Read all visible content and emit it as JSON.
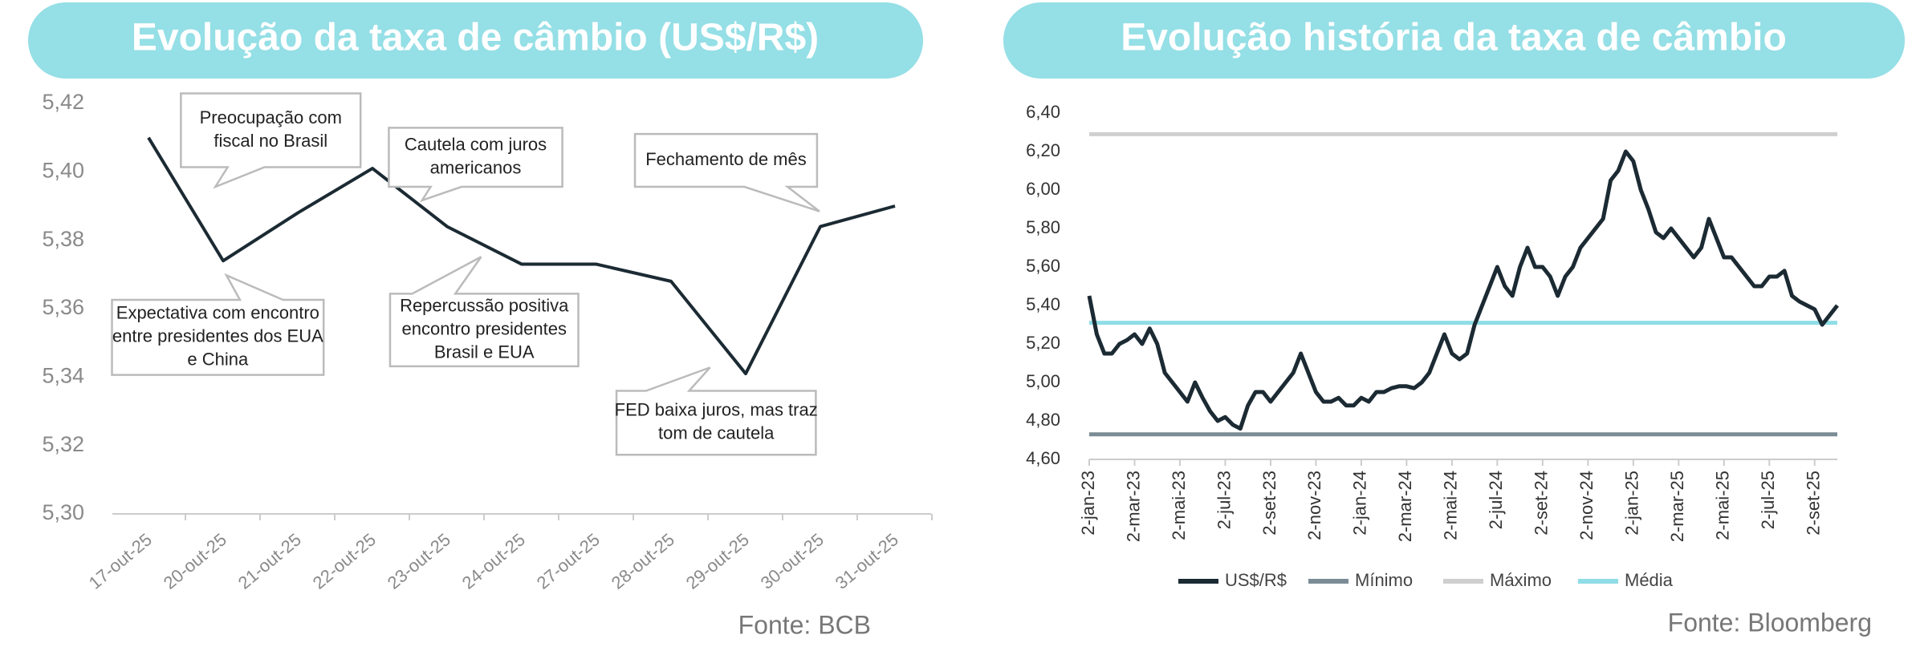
{
  "chart_data": [
    {
      "type": "line",
      "title": "Evolução da taxa de câmbio (US$/R$)",
      "categories": [
        "17-out-25",
        "20-out-25",
        "21-out-25",
        "22-out-25",
        "23-out-25",
        "24-out-25",
        "27-out-25",
        "28-out-25",
        "29-out-25",
        "30-out-25",
        "31-out-25"
      ],
      "values": [
        5.41,
        5.374,
        5.388,
        5.401,
        5.384,
        5.373,
        5.373,
        5.368,
        5.341,
        5.384,
        5.39
      ],
      "color": "#1b2a33",
      "ylim": [
        5.3,
        5.42
      ],
      "yticks": [
        {
          "value": 5.3,
          "label": "5,30"
        },
        {
          "value": 5.32,
          "label": "5,32"
        },
        {
          "value": 5.34,
          "label": "5,34"
        },
        {
          "value": 5.36,
          "label": "5,36"
        },
        {
          "value": 5.38,
          "label": "5,38"
        },
        {
          "value": 5.4,
          "label": "5,40"
        },
        {
          "value": 5.42,
          "label": "5,42"
        }
      ],
      "annotations": [
        {
          "lines": [
            "Preocupação com",
            "fiscal no Brasil"
          ]
        },
        {
          "lines": [
            "Cautela com juros",
            "americanos"
          ]
        },
        {
          "lines": [
            "Fechamento de mês"
          ]
        },
        {
          "lines": [
            "Expectativa com encontro",
            "entre presidentes dos EUA",
            "e China"
          ]
        },
        {
          "lines": [
            "Repercussão positiva",
            "encontro presidentes",
            "Brasil e EUA"
          ]
        },
        {
          "lines": [
            "FED baixa juros, mas traz",
            "tom de cautela"
          ]
        }
      ],
      "source": "Fonte: BCB"
    },
    {
      "type": "line",
      "title": "Evolução história da taxa de câmbio",
      "x": [
        "2-jan-23",
        null,
        null,
        null,
        null,
        null,
        "2-mar-23",
        null,
        null,
        null,
        null,
        null,
        "2-mai-23",
        null,
        null,
        null,
        null,
        null,
        "2-jul-23",
        null,
        null,
        null,
        null,
        null,
        "2-set-23",
        null,
        null,
        null,
        null,
        null,
        "2-nov-23",
        null,
        null,
        null,
        null,
        null,
        "2-jan-24",
        null,
        null,
        null,
        null,
        null,
        "2-mar-24",
        null,
        null,
        null,
        null,
        null,
        "2-mai-24",
        null,
        null,
        null,
        null,
        null,
        "2-jul-24",
        null,
        null,
        null,
        null,
        null,
        "2-set-24",
        null,
        null,
        null,
        null,
        null,
        "2-nov-24",
        null,
        null,
        null,
        null,
        null,
        "2-jan-25",
        null,
        null,
        null,
        null,
        null,
        "2-mar-25",
        null,
        null,
        null,
        null,
        null,
        "2-mai-25",
        null,
        null,
        null,
        null,
        null,
        "2-jul-25",
        null,
        null,
        null,
        null,
        null,
        "2-set-25",
        null,
        null,
        null
      ],
      "series": [
        {
          "name": "US$/R$",
          "color": "#1b2a33",
          "values": [
            5.45,
            5.25,
            5.15,
            5.15,
            5.2,
            5.22,
            5.25,
            5.2,
            5.28,
            5.2,
            5.05,
            5.0,
            4.95,
            4.9,
            5.0,
            4.92,
            4.85,
            4.8,
            4.82,
            4.78,
            4.76,
            4.88,
            4.95,
            4.95,
            4.9,
            4.95,
            5.0,
            5.05,
            5.15,
            5.05,
            4.95,
            4.9,
            4.9,
            4.92,
            4.88,
            4.88,
            4.92,
            4.9,
            4.95,
            4.95,
            4.97,
            4.98,
            4.98,
            4.97,
            5.0,
            5.05,
            5.15,
            5.25,
            5.15,
            5.12,
            5.15,
            5.3,
            5.4,
            5.5,
            5.6,
            5.5,
            5.45,
            5.6,
            5.7,
            5.6,
            5.6,
            5.55,
            5.45,
            5.55,
            5.6,
            5.7,
            5.75,
            5.8,
            5.85,
            6.05,
            6.1,
            6.2,
            6.15,
            6.0,
            5.9,
            5.78,
            5.75,
            5.8,
            5.75,
            5.7,
            5.65,
            5.7,
            5.85,
            5.75,
            5.65,
            5.65,
            5.6,
            5.55,
            5.5,
            5.5,
            5.55,
            5.55,
            5.58,
            5.45,
            5.42,
            5.4,
            5.38,
            5.3,
            5.35,
            5.4
          ]
        }
      ],
      "reference_lines": [
        {
          "name": "Mínimo",
          "value": 4.73,
          "color": "#7b8c96"
        },
        {
          "name": "Máximo",
          "value": 6.29,
          "color": "#cfcfcf"
        },
        {
          "name": "Média",
          "value": 5.31,
          "color": "#8fdde6"
        }
      ],
      "ylim": [
        4.6,
        6.4
      ],
      "yticks": [
        {
          "value": 4.6,
          "label": "4,60"
        },
        {
          "value": 4.8,
          "label": "4,80"
        },
        {
          "value": 5.0,
          "label": "5,00"
        },
        {
          "value": 5.2,
          "label": "5,20"
        },
        {
          "value": 5.4,
          "label": "5,40"
        },
        {
          "value": 5.6,
          "label": "5,60"
        },
        {
          "value": 5.8,
          "label": "5,80"
        },
        {
          "value": 6.0,
          "label": "6,00"
        },
        {
          "value": 6.2,
          "label": "6,20"
        },
        {
          "value": 6.4,
          "label": "6,40"
        }
      ],
      "source": "Fonte: Bloomberg"
    }
  ]
}
